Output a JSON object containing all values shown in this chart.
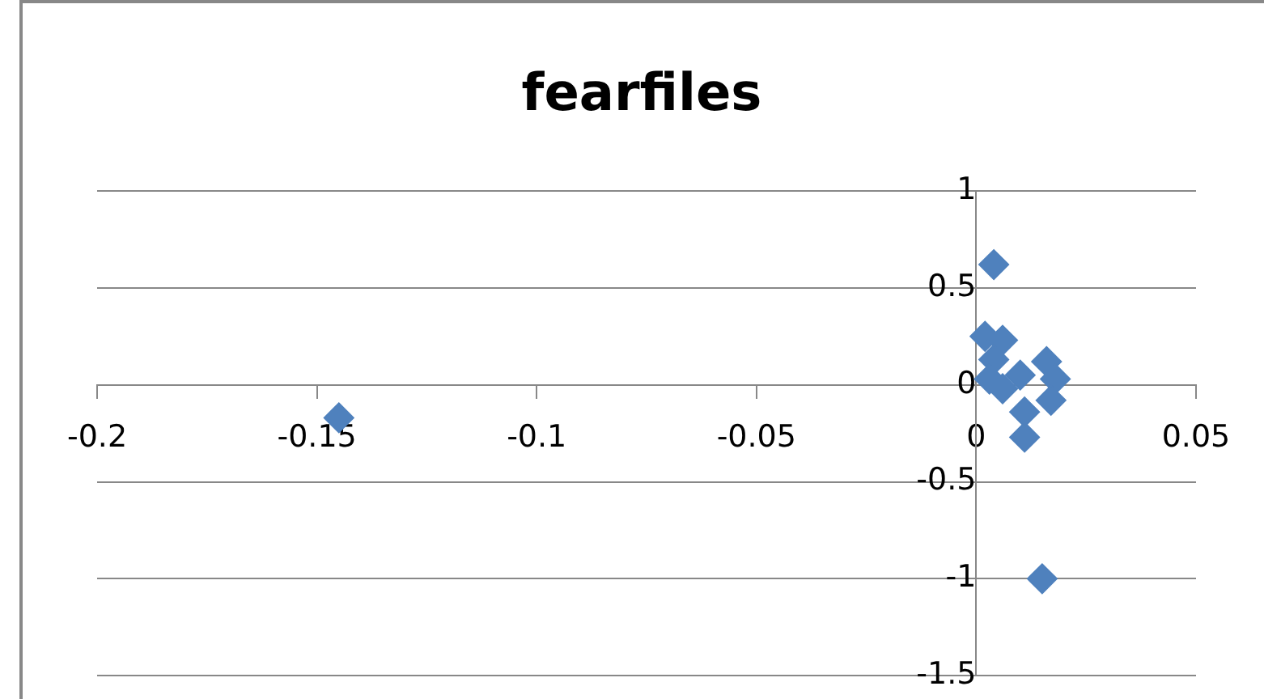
{
  "chart_data": {
    "type": "scatter",
    "title": "fearfiles",
    "series": [
      {
        "color": "#4f81bd",
        "x": [
          -0.145,
          0.004,
          0.015,
          0.011,
          0.002,
          0.006,
          0.016,
          0.018,
          0.017,
          0.011,
          0.004,
          0.003,
          0.006,
          0.01
        ],
        "values": [
          -0.17,
          0.62,
          -1.0,
          -0.27,
          0.25,
          0.23,
          0.12,
          0.03,
          -0.08,
          -0.14,
          0.13,
          0.03,
          -0.02,
          0.05
        ]
      }
    ],
    "xlim": [
      -0.2,
      0.05
    ],
    "xticks": [
      -0.2,
      -0.15,
      -0.1,
      -0.05,
      0,
      0.05
    ],
    "ylim": [
      -1.5,
      1
    ],
    "yticks": [
      -1.5,
      -1,
      -0.5,
      0,
      0.5,
      1
    ],
    "grid": "y",
    "legend": false,
    "marker": "diamond"
  }
}
